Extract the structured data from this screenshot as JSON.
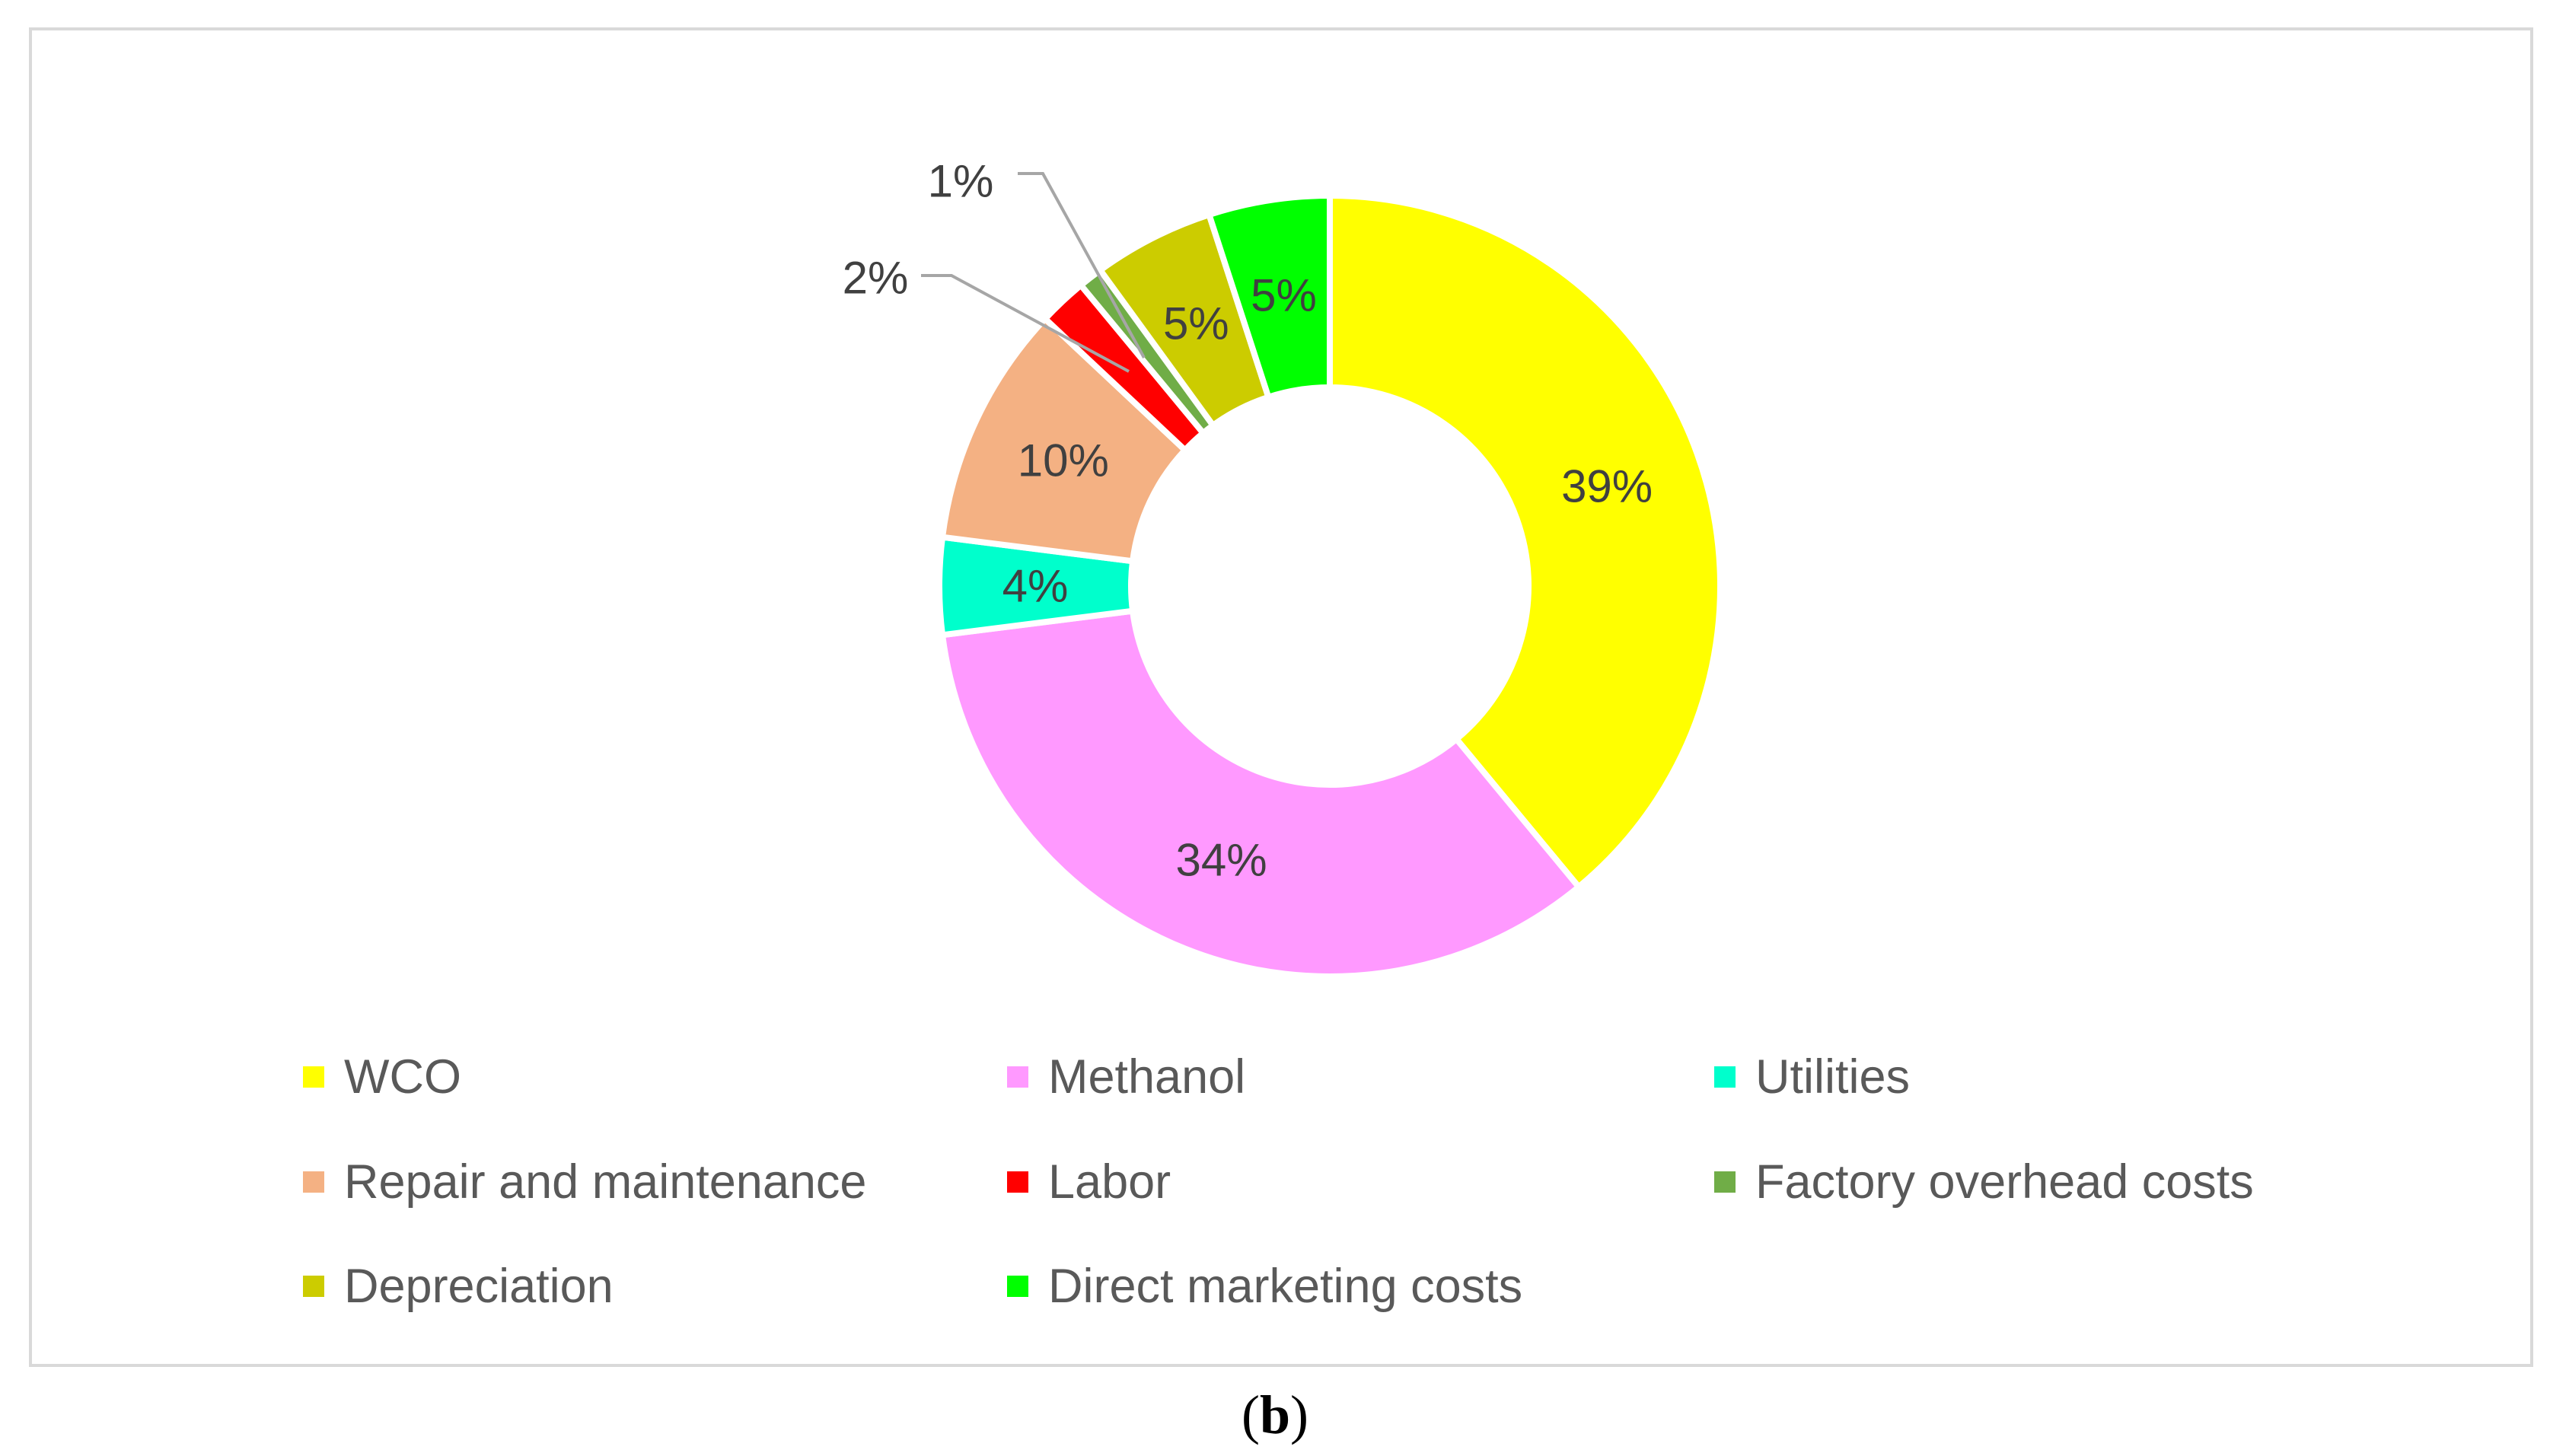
{
  "chart_data": {
    "type": "donut",
    "categories": [
      "WCO",
      "Methanol",
      "Utilities",
      "Repair and maintenance",
      "Labor",
      "Factory overhead costs",
      "Depreciation",
      "Direct marketing costs"
    ],
    "values": [
      39,
      34,
      4,
      10,
      2,
      1,
      5,
      5
    ],
    "data_labels": [
      "39%",
      "34%",
      "4%",
      "10%",
      "2%",
      "1%",
      "5%",
      "5%"
    ],
    "colors": [
      "#FFFF00",
      "#FF99FF",
      "#00FFCC",
      "#F4B183",
      "#FF0000",
      "#70AD47",
      "#CCCC00",
      "#00FF00"
    ],
    "legend_position": "bottom",
    "title": ""
  },
  "caption": {
    "open": "(",
    "letter": "b",
    "close": ")"
  }
}
